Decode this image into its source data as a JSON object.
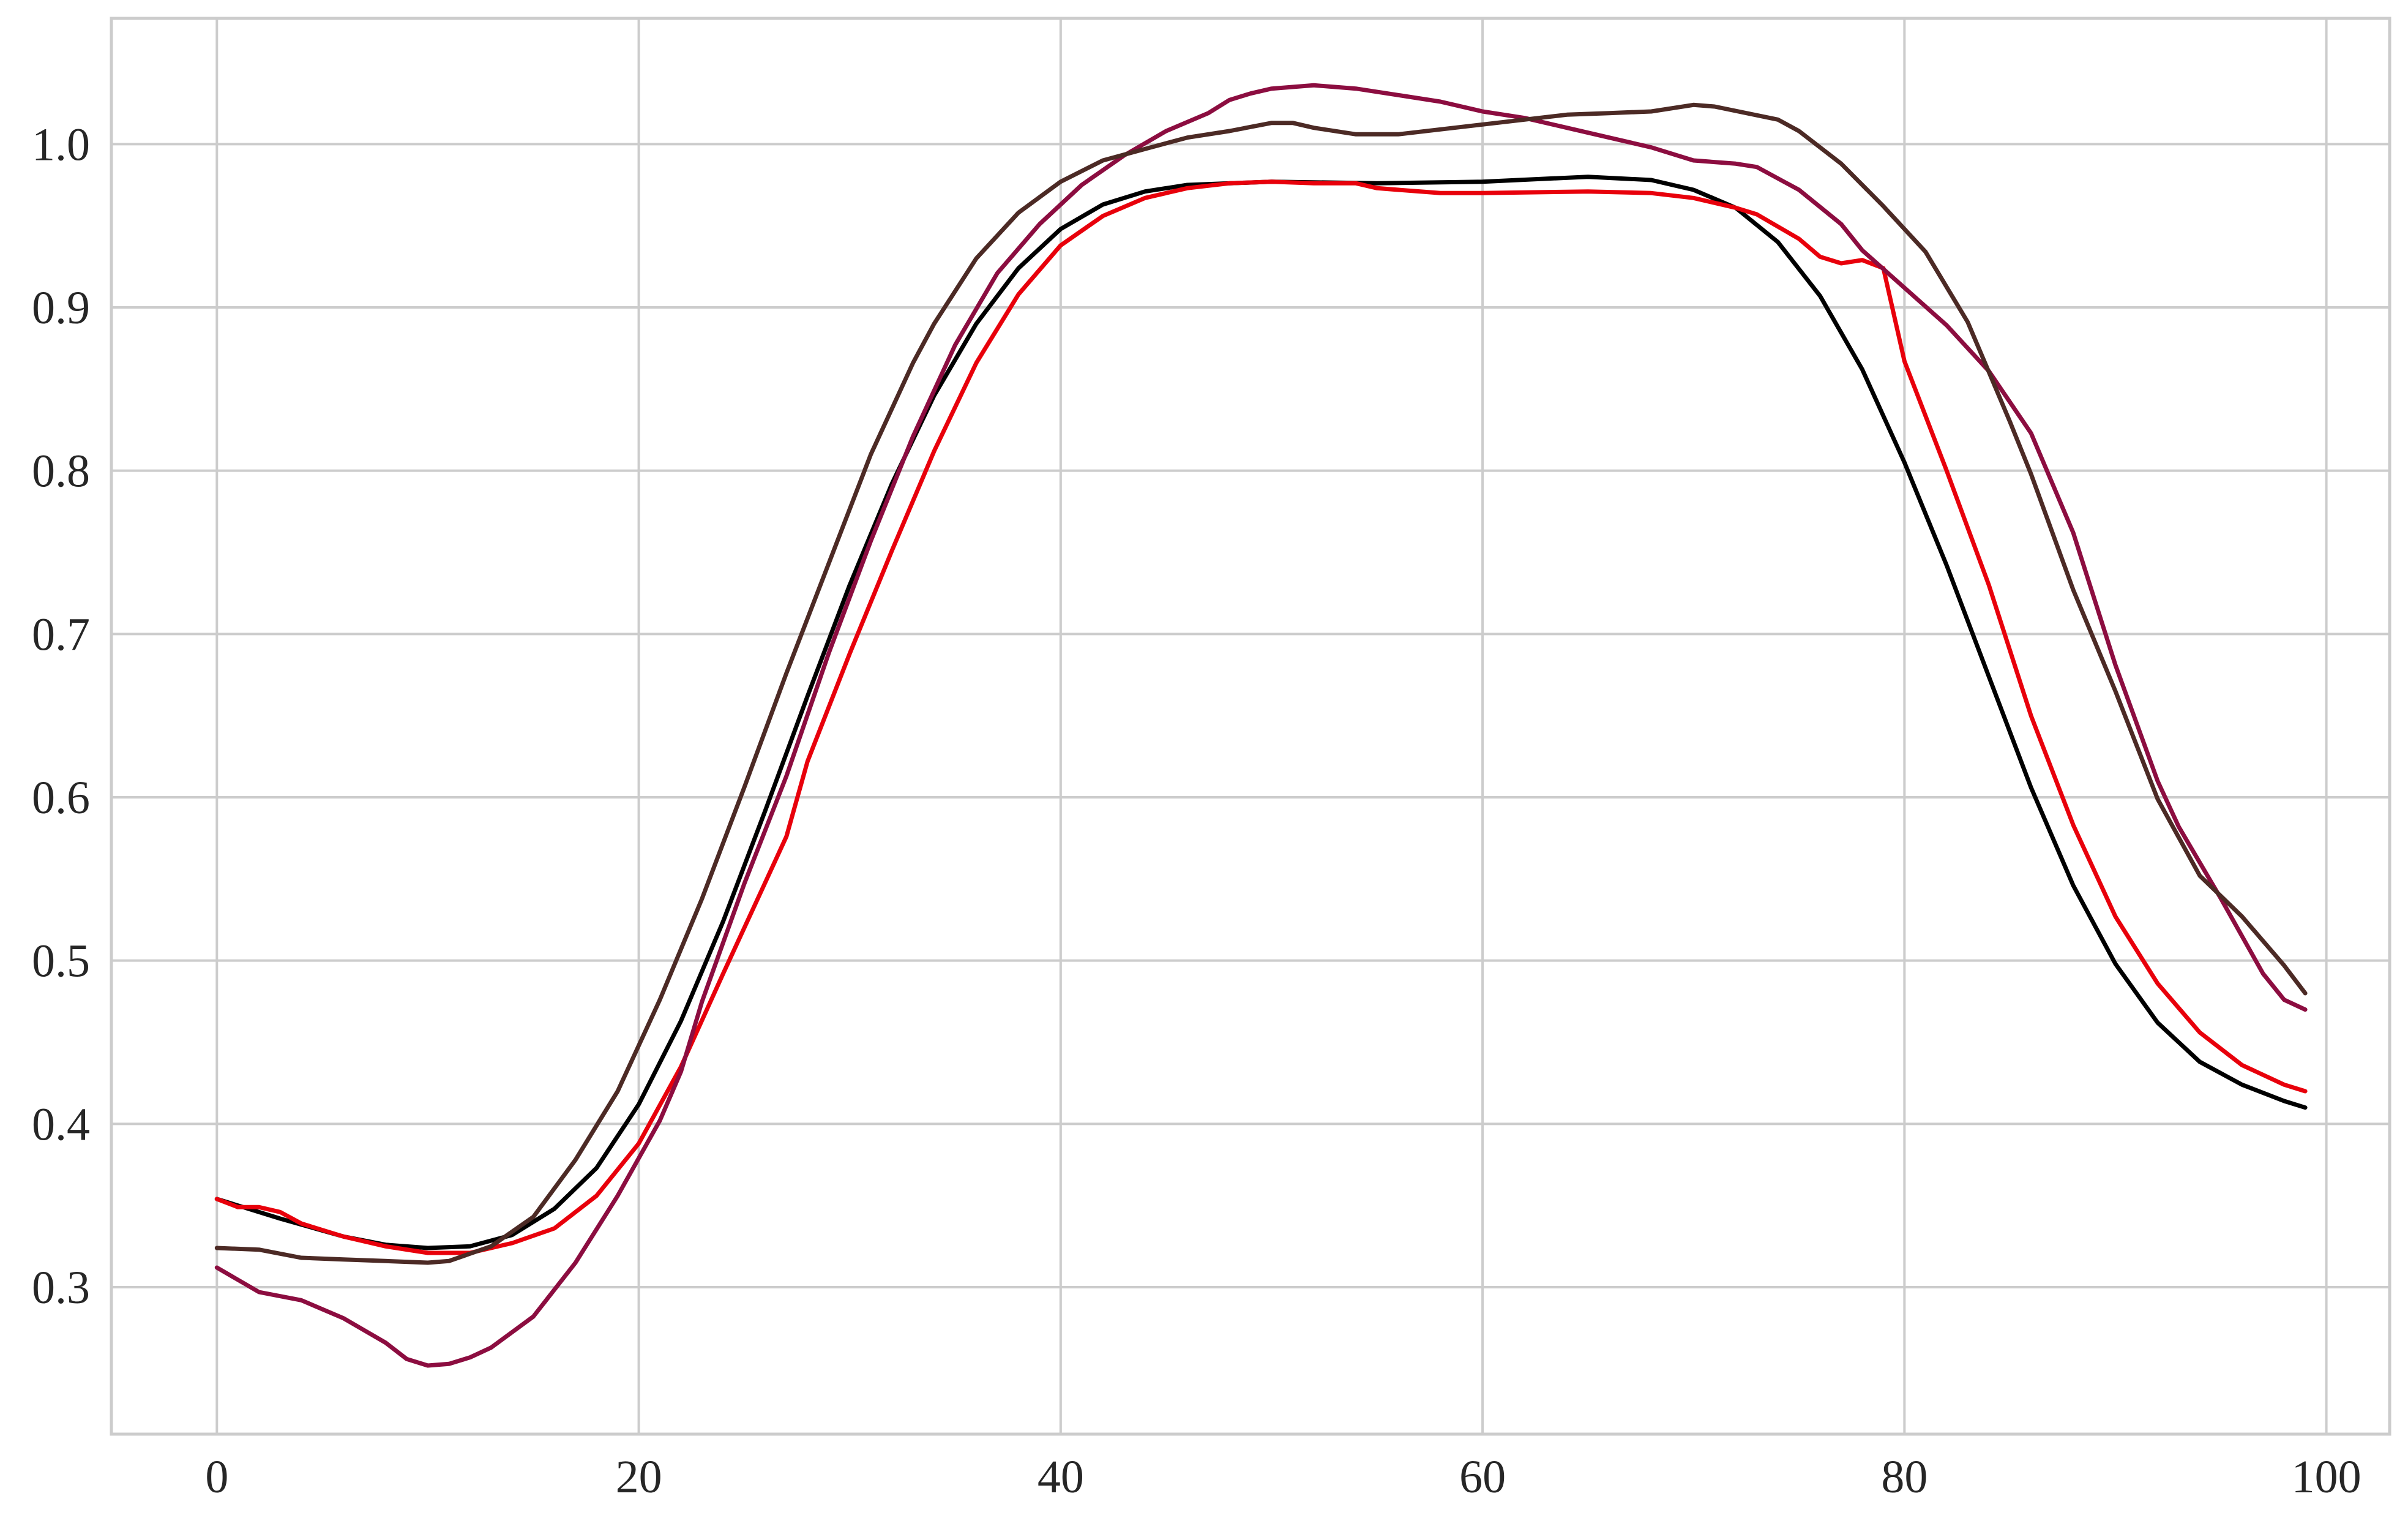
{
  "chart_data": {
    "type": "line",
    "title": "",
    "xlabel": "",
    "ylabel": "",
    "xlim": [
      -5,
      103
    ],
    "ylim": [
      0.21,
      1.077
    ],
    "xticks": [
      0,
      20,
      40,
      60,
      80,
      100
    ],
    "yticks": [
      0.3,
      0.4,
      0.5,
      0.6,
      0.7,
      0.8,
      0.9,
      1.0
    ],
    "xtick_labels": [
      "0",
      "20",
      "40",
      "60",
      "80",
      "100"
    ],
    "ytick_labels": [
      "0.3",
      "0.4",
      "0.5",
      "0.6",
      "0.7",
      "0.8",
      "0.9",
      "1.0"
    ],
    "grid": true,
    "legend": "none",
    "series": [
      {
        "color": "#000000",
        "points": [
          [
            0,
            0.354
          ],
          [
            3,
            0.342
          ],
          [
            6,
            0.331
          ],
          [
            8,
            0.326
          ],
          [
            10,
            0.324
          ],
          [
            12,
            0.325
          ],
          [
            14,
            0.332
          ],
          [
            16,
            0.348
          ],
          [
            18,
            0.373
          ],
          [
            20,
            0.412
          ],
          [
            22,
            0.463
          ],
          [
            24,
            0.524
          ],
          [
            26,
            0.592
          ],
          [
            28,
            0.662
          ],
          [
            30,
            0.73
          ],
          [
            32,
            0.792
          ],
          [
            34,
            0.846
          ],
          [
            36,
            0.89
          ],
          [
            38,
            0.924
          ],
          [
            40,
            0.948
          ],
          [
            42,
            0.963
          ],
          [
            44,
            0.971
          ],
          [
            46,
            0.975
          ],
          [
            50,
            0.977
          ],
          [
            55,
            0.976
          ],
          [
            60,
            0.977
          ],
          [
            65,
            0.98
          ],
          [
            68,
            0.978
          ],
          [
            70,
            0.972
          ],
          [
            72,
            0.961
          ],
          [
            74,
            0.94
          ],
          [
            76,
            0.907
          ],
          [
            78,
            0.862
          ],
          [
            80,
            0.805
          ],
          [
            82,
            0.742
          ],
          [
            84,
            0.674
          ],
          [
            86,
            0.606
          ],
          [
            88,
            0.546
          ],
          [
            90,
            0.498
          ],
          [
            92,
            0.462
          ],
          [
            94,
            0.438
          ],
          [
            96,
            0.424
          ],
          [
            98,
            0.414
          ],
          [
            99,
            0.41
          ]
        ]
      },
      {
        "color": "#e8000b",
        "points": [
          [
            0,
            0.354
          ],
          [
            1,
            0.349
          ],
          [
            2,
            0.349
          ],
          [
            3,
            0.346
          ],
          [
            4,
            0.339
          ],
          [
            6,
            0.331
          ],
          [
            8,
            0.325
          ],
          [
            10,
            0.321
          ],
          [
            12,
            0.321
          ],
          [
            13,
            0.324
          ],
          [
            14,
            0.327
          ],
          [
            16,
            0.336
          ],
          [
            18,
            0.356
          ],
          [
            20,
            0.388
          ],
          [
            22,
            0.435
          ],
          [
            24,
            0.492
          ],
          [
            26,
            0.548
          ],
          [
            27,
            0.576
          ],
          [
            28,
            0.622
          ],
          [
            30,
            0.688
          ],
          [
            32,
            0.751
          ],
          [
            34,
            0.812
          ],
          [
            36,
            0.866
          ],
          [
            38,
            0.908
          ],
          [
            40,
            0.938
          ],
          [
            42,
            0.956
          ],
          [
            44,
            0.967
          ],
          [
            46,
            0.973
          ],
          [
            48,
            0.976
          ],
          [
            50,
            0.977
          ],
          [
            52,
            0.976
          ],
          [
            54,
            0.976
          ],
          [
            55,
            0.973
          ],
          [
            58,
            0.97
          ],
          [
            60,
            0.97
          ],
          [
            65,
            0.971
          ],
          [
            68,
            0.97
          ],
          [
            70,
            0.967
          ],
          [
            72,
            0.961
          ],
          [
            73,
            0.957
          ],
          [
            75,
            0.942
          ],
          [
            76,
            0.931
          ],
          [
            77,
            0.927
          ],
          [
            78,
            0.929
          ],
          [
            79,
            0.924
          ],
          [
            80,
            0.867
          ],
          [
            82,
            0.8
          ],
          [
            84,
            0.73
          ],
          [
            86,
            0.65
          ],
          [
            88,
            0.583
          ],
          [
            90,
            0.527
          ],
          [
            92,
            0.486
          ],
          [
            94,
            0.456
          ],
          [
            96,
            0.436
          ],
          [
            98,
            0.424
          ],
          [
            99,
            0.42
          ]
        ]
      },
      {
        "color": "#8c0d40",
        "points": [
          [
            0,
            0.312
          ],
          [
            2,
            0.297
          ],
          [
            4,
            0.292
          ],
          [
            6,
            0.281
          ],
          [
            8,
            0.266
          ],
          [
            9,
            0.256
          ],
          [
            10,
            0.252
          ],
          [
            11,
            0.253
          ],
          [
            12,
            0.257
          ],
          [
            13,
            0.263
          ],
          [
            15,
            0.282
          ],
          [
            17,
            0.315
          ],
          [
            19,
            0.356
          ],
          [
            21,
            0.402
          ],
          [
            22,
            0.432
          ],
          [
            23,
            0.475
          ],
          [
            25,
            0.547
          ],
          [
            27,
            0.613
          ],
          [
            29,
            0.688
          ],
          [
            31,
            0.757
          ],
          [
            33,
            0.821
          ],
          [
            35,
            0.877
          ],
          [
            37,
            0.921
          ],
          [
            39,
            0.951
          ],
          [
            41,
            0.975
          ],
          [
            43,
            0.993
          ],
          [
            45,
            1.008
          ],
          [
            47,
            1.019
          ],
          [
            48,
            1.027
          ],
          [
            49,
            1.031
          ],
          [
            50,
            1.034
          ],
          [
            52,
            1.036
          ],
          [
            54,
            1.034
          ],
          [
            56,
            1.03
          ],
          [
            58,
            1.026
          ],
          [
            60,
            1.02
          ],
          [
            62,
            1.016
          ],
          [
            64,
            1.01
          ],
          [
            66,
            1.004
          ],
          [
            68,
            0.998
          ],
          [
            70,
            0.99
          ],
          [
            72,
            0.988
          ],
          [
            73,
            0.986
          ],
          [
            75,
            0.972
          ],
          [
            77,
            0.951
          ],
          [
            78,
            0.935
          ],
          [
            80,
            0.912
          ],
          [
            82,
            0.889
          ],
          [
            84,
            0.861
          ],
          [
            86,
            0.823
          ],
          [
            88,
            0.762
          ],
          [
            90,
            0.681
          ],
          [
            92,
            0.61
          ],
          [
            93,
            0.582
          ],
          [
            95,
            0.538
          ],
          [
            97,
            0.492
          ],
          [
            98,
            0.476
          ],
          [
            99,
            0.47
          ]
        ]
      },
      {
        "color": "#4c2a25",
        "points": [
          [
            0,
            0.324
          ],
          [
            2,
            0.323
          ],
          [
            4,
            0.318
          ],
          [
            6,
            0.317
          ],
          [
            8,
            0.316
          ],
          [
            10,
            0.315
          ],
          [
            11,
            0.316
          ],
          [
            13,
            0.325
          ],
          [
            15,
            0.343
          ],
          [
            17,
            0.378
          ],
          [
            19,
            0.42
          ],
          [
            21,
            0.476
          ],
          [
            23,
            0.538
          ],
          [
            25,
            0.606
          ],
          [
            27,
            0.676
          ],
          [
            29,
            0.743
          ],
          [
            31,
            0.81
          ],
          [
            33,
            0.866
          ],
          [
            34,
            0.89
          ],
          [
            36,
            0.93
          ],
          [
            38,
            0.958
          ],
          [
            40,
            0.977
          ],
          [
            42,
            0.99
          ],
          [
            44,
            0.997
          ],
          [
            46,
            1.004
          ],
          [
            48,
            1.008
          ],
          [
            50,
            1.013
          ],
          [
            51,
            1.013
          ],
          [
            52,
            1.01
          ],
          [
            54,
            1.006
          ],
          [
            56,
            1.006
          ],
          [
            58,
            1.009
          ],
          [
            60,
            1.012
          ],
          [
            62,
            1.015
          ],
          [
            64,
            1.018
          ],
          [
            66,
            1.019
          ],
          [
            68,
            1.02
          ],
          [
            70,
            1.024
          ],
          [
            71,
            1.023
          ],
          [
            74,
            1.015
          ],
          [
            75,
            1.008
          ],
          [
            77,
            0.988
          ],
          [
            79,
            0.962
          ],
          [
            81,
            0.934
          ],
          [
            83,
            0.891
          ],
          [
            85,
            0.83
          ],
          [
            86,
            0.798
          ],
          [
            88,
            0.727
          ],
          [
            90,
            0.665
          ],
          [
            92,
            0.599
          ],
          [
            94,
            0.552
          ],
          [
            96,
            0.527
          ],
          [
            98,
            0.497
          ],
          [
            99,
            0.48
          ]
        ]
      }
    ]
  }
}
